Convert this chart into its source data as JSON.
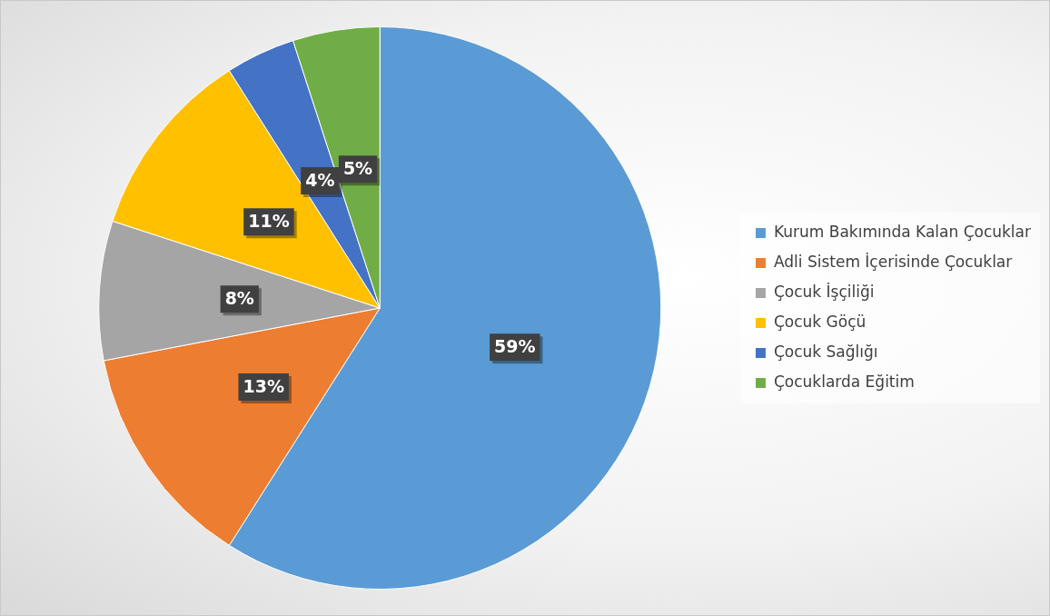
{
  "chart_data": {
    "type": "pie",
    "categories": [
      "Kurum Bakımında Kalan Çocuklar",
      "Adli Sistem İçerisinde Çocuklar",
      "Çocuk İşçiliği",
      "Çocuk Göçü",
      "Çocuk Sağlığı",
      "Çocuklarda Eğitim"
    ],
    "values": [
      59,
      13,
      8,
      11,
      4,
      5
    ],
    "colors": [
      "#5b9bd5",
      "#ed7d31",
      "#a5a5a5",
      "#ffc000",
      "#4472c4",
      "#70ad47"
    ],
    "value_labels": [
      "59%",
      "13%",
      "8%",
      "11%",
      "4%",
      "5%"
    ],
    "legend": "right"
  }
}
